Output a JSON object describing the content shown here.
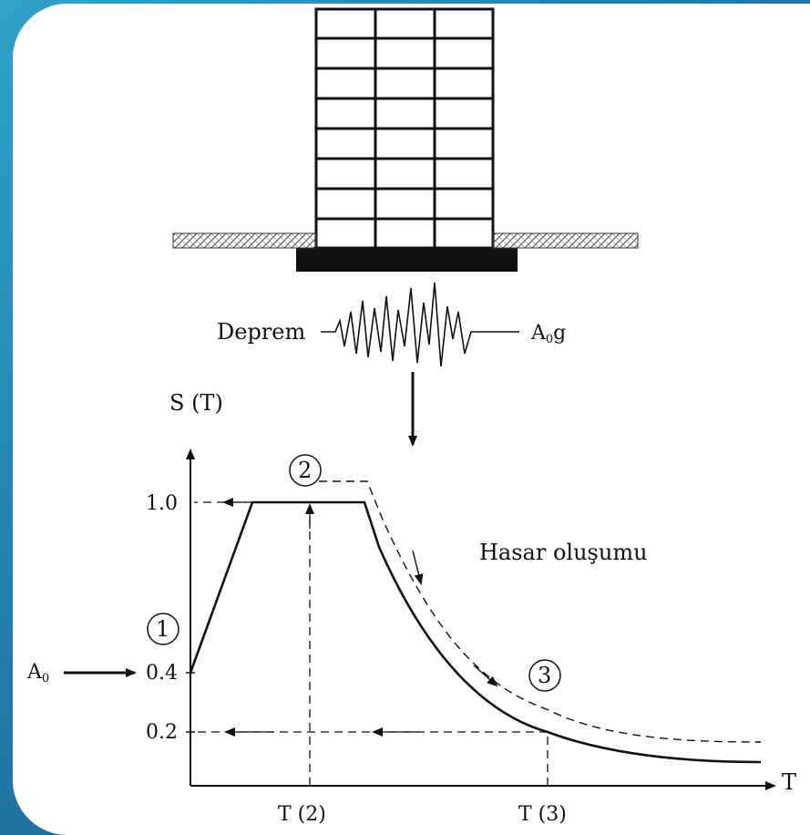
{
  "labels": {
    "earthquake": "Deprem",
    "ground_accel_base": "A",
    "ground_accel_sub": "0",
    "ground_accel_suffix": "g",
    "y_axis": "S (T)",
    "x_axis": "T",
    "damage": "Hasar oluşumu",
    "a0_base": "A",
    "a0_sub": "0"
  },
  "y_ticks": [
    "1.0",
    "0.4",
    "0.2"
  ],
  "x_ticks": [
    "T (2)",
    "T (3)"
  ],
  "steps": [
    "1",
    "2",
    "3"
  ]
}
